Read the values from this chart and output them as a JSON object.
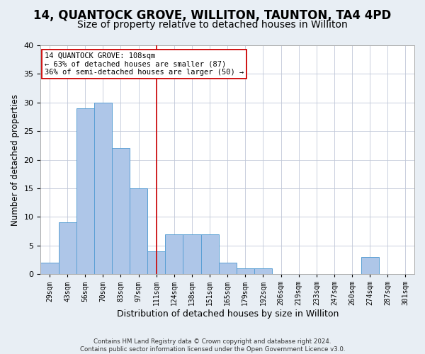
{
  "title1": "14, QUANTOCK GROVE, WILLITON, TAUNTON, TA4 4PD",
  "title2": "Size of property relative to detached houses in Williton",
  "xlabel": "Distribution of detached houses by size in Williton",
  "ylabel": "Number of detached properties",
  "categories": [
    "29sqm",
    "43sqm",
    "56sqm",
    "70sqm",
    "83sqm",
    "97sqm",
    "111sqm",
    "124sqm",
    "138sqm",
    "151sqm",
    "165sqm",
    "179sqm",
    "192sqm",
    "206sqm",
    "219sqm",
    "233sqm",
    "247sqm",
    "260sqm",
    "274sqm",
    "287sqm",
    "301sqm"
  ],
  "values": [
    2,
    9,
    29,
    30,
    22,
    15,
    4,
    7,
    7,
    7,
    2,
    1,
    1,
    0,
    0,
    0,
    0,
    0,
    3,
    0,
    0
  ],
  "bar_color": "#aec6e8",
  "bar_edge_color": "#5a9fd4",
  "property_line_x": 6,
  "property_line_color": "#cc0000",
  "annotation_text": "14 QUANTOCK GROVE: 108sqm\n← 63% of detached houses are smaller (87)\n36% of semi-detached houses are larger (50) →",
  "annotation_box_color": "#ffffff",
  "annotation_box_edge_color": "#cc0000",
  "ylim": [
    0,
    40
  ],
  "yticks": [
    0,
    5,
    10,
    15,
    20,
    25,
    30,
    35,
    40
  ],
  "footnote1": "Contains HM Land Registry data © Crown copyright and database right 2024.",
  "footnote2": "Contains public sector information licensed under the Open Government Licence v3.0.",
  "background_color": "#e8eef4",
  "plot_bg_color": "#ffffff",
  "grid_color": "#c0c8d8",
  "title1_fontsize": 12,
  "title2_fontsize": 10,
  "xlabel_fontsize": 9,
  "ylabel_fontsize": 8.5
}
